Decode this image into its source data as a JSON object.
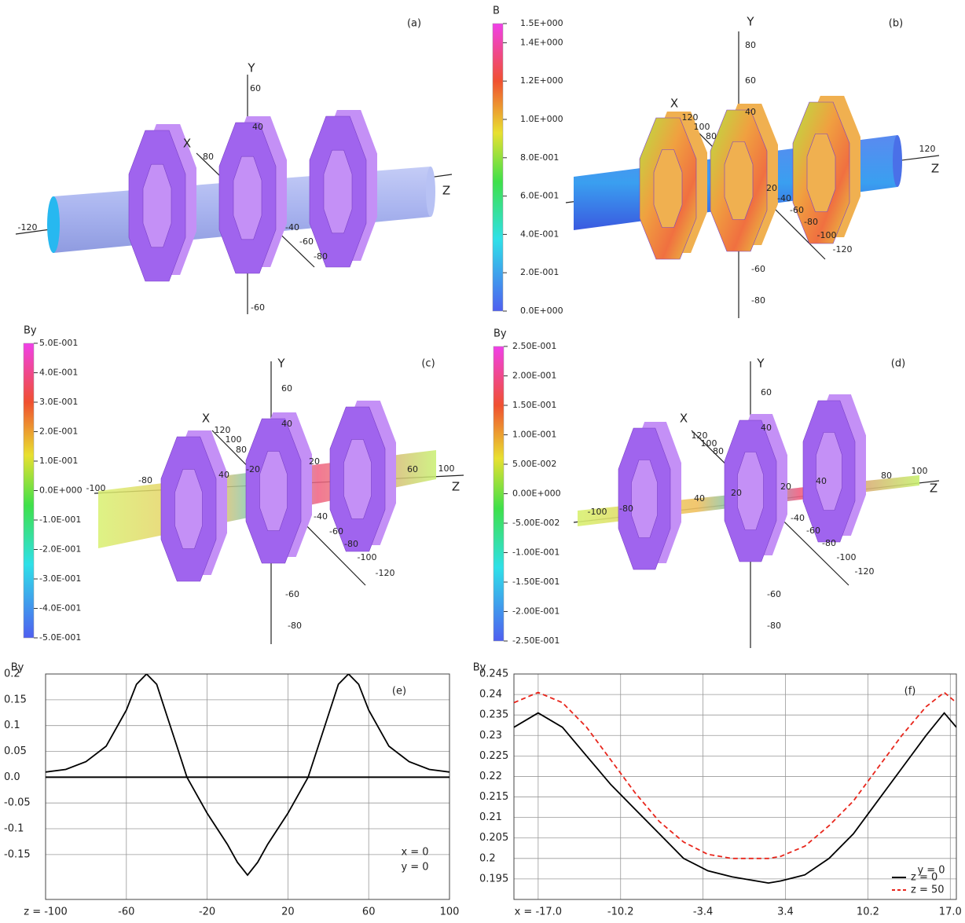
{
  "panels": [
    {
      "label": "(a)",
      "axis_titles": [
        "Y",
        "X",
        "Z"
      ],
      "tick_labels": [
        "60",
        "40",
        "80",
        "-120",
        "-40",
        "-60",
        "-80",
        "-60"
      ]
    },
    {
      "label": "(b)",
      "colorbar": {
        "title": "B",
        "lim": [
          0,
          1.5
        ],
        "ticks": [
          {
            "value": 1.5,
            "label": "1.5E+000"
          },
          {
            "value": 1.4,
            "label": "1.4E+000"
          },
          {
            "value": 1.2,
            "label": "1.2E+000"
          },
          {
            "value": 1.0,
            "label": "1.0E+000"
          },
          {
            "value": 0.8,
            "label": "8.0E-001"
          },
          {
            "value": 0.6,
            "label": "6.0E-001"
          },
          {
            "value": 0.4,
            "label": "4.0E-001"
          },
          {
            "value": 0.2,
            "label": "2.0E-001"
          },
          {
            "value": 0,
            "label": "0.0E+000"
          }
        ]
      },
      "axis_titles": [
        "Y",
        "X",
        "Z"
      ],
      "tick_labels": [
        "80",
        "60",
        "40",
        "120",
        "100",
        "80",
        "120",
        "20",
        "-40",
        "-60",
        "-80",
        "-100",
        "-120",
        "-60",
        "-80"
      ]
    },
    {
      "label": "(c)",
      "colorbar": {
        "title": "By",
        "lim": [
          -0.5,
          0.5
        ],
        "ticks": [
          {
            "value": 0.5,
            "label": "5.0E-001"
          },
          {
            "value": 0.4,
            "label": "4.0E-001"
          },
          {
            "value": 0.3,
            "label": "3.0E-001"
          },
          {
            "value": 0.2,
            "label": "2.0E-001"
          },
          {
            "value": 0.1,
            "label": "1.0E-001"
          },
          {
            "value": 0,
            "label": "0.0E+000"
          },
          {
            "value": -0.1,
            "label": "-1.0E-001"
          },
          {
            "value": -0.2,
            "label": "-2.0E-001"
          },
          {
            "value": -0.3,
            "label": "-3.0E-001"
          },
          {
            "value": -0.4,
            "label": "-4.0E-001"
          },
          {
            "value": -0.5,
            "label": "-5.0E-001"
          }
        ]
      },
      "axis_titles": [
        "Y",
        "X",
        "Z"
      ],
      "tick_labels": [
        "60",
        "40",
        "120",
        "100",
        "80",
        "100",
        "-100",
        "-80",
        "40",
        "-20",
        "20",
        "60",
        "-40",
        "-60",
        "-80",
        "-100",
        "-120",
        "-60",
        "-80"
      ]
    },
    {
      "label": "(d)",
      "colorbar": {
        "title": "By",
        "lim": [
          -0.25,
          0.25
        ],
        "ticks": [
          {
            "value": 0.25,
            "label": "2.50E-001"
          },
          {
            "value": 0.2,
            "label": "2.00E-001"
          },
          {
            "value": 0.15,
            "label": "1.50E-001"
          },
          {
            "value": 0.1,
            "label": "1.00E-001"
          },
          {
            "value": 0.05,
            "label": "5.00E-002"
          },
          {
            "value": 0,
            "label": "0.00E+000"
          },
          {
            "value": -0.05,
            "label": "-5.00E-002"
          },
          {
            "value": -0.1,
            "label": "-1.00E-001"
          },
          {
            "value": -0.15,
            "label": "-1.50E-001"
          },
          {
            "value": -0.2,
            "label": "-2.00E-001"
          },
          {
            "value": -0.25,
            "label": "-2.50E-001"
          }
        ]
      },
      "axis_titles": [
        "Y",
        "X",
        "Z"
      ],
      "tick_labels": [
        "60",
        "40",
        "120",
        "100",
        "80",
        "100",
        "80",
        "-100",
        "-80",
        "40",
        "20",
        "20",
        "40",
        "-40",
        "-60",
        "-80",
        "-100",
        "-120",
        "-60",
        "-80"
      ]
    }
  ],
  "chart_data": [
    {
      "type": "line",
      "y_label": "By",
      "annotations": [
        "(e)",
        "x = 0",
        "y = 0"
      ],
      "x": [
        -100,
        -90,
        -80,
        -70,
        -60,
        -55,
        -50,
        -45,
        -40,
        -35,
        -30,
        -20,
        -10,
        -5,
        0,
        5,
        10,
        20,
        30,
        35,
        40,
        45,
        50,
        55,
        60,
        70,
        80,
        90,
        100
      ],
      "series": [
        {
          "color": "#000000",
          "dash": false,
          "values": [
            0.01,
            0.015,
            0.03,
            0.06,
            0.13,
            0.18,
            0.2,
            0.18,
            0.12,
            0.06,
            0.0,
            -0.07,
            -0.13,
            -0.165,
            -0.19,
            -0.165,
            -0.13,
            -0.07,
            0.0,
            0.06,
            0.12,
            0.18,
            0.2,
            0.18,
            0.13,
            0.06,
            0.03,
            0.015,
            0.01
          ]
        }
      ],
      "xlim": [
        -100,
        100
      ],
      "xticks": [
        {
          "value": -100,
          "label": "z = -100"
        },
        -60,
        -20,
        20,
        60,
        100
      ],
      "ylim": [
        -0.237,
        0.2
      ],
      "yticks": [
        0.2,
        0.15,
        0.1,
        0.05,
        {
          "value": 0,
          "label": "0.0"
        },
        -0.05,
        -0.1,
        -0.15
      ],
      "grid": true,
      "zero_line": true
    },
    {
      "type": "line",
      "y_label": "By",
      "annotations": [
        "(f)",
        "y = 0"
      ],
      "legend": "lower right",
      "x": [
        -19,
        -17,
        -15,
        -13,
        -11,
        -9,
        -7,
        -5,
        -3,
        -1,
        1,
        2,
        3,
        5,
        7,
        9,
        11,
        13,
        15,
        16.5,
        17.5
      ],
      "series": [
        {
          "name": "z = 0",
          "color": "#000000",
          "dash": false,
          "values": [
            0.232,
            0.2355,
            0.232,
            0.225,
            0.218,
            0.212,
            0.206,
            0.2,
            0.197,
            0.1955,
            0.1945,
            0.194,
            0.1945,
            0.196,
            0.2,
            0.206,
            0.214,
            0.222,
            0.23,
            0.2355,
            0.232
          ]
        },
        {
          "name": "z = 50",
          "color": "#e8261c",
          "dash": true,
          "values": [
            0.238,
            0.2405,
            0.238,
            0.232,
            0.224,
            0.216,
            0.209,
            0.204,
            0.201,
            0.2,
            0.2,
            0.2,
            0.2005,
            0.203,
            0.208,
            0.214,
            0.222,
            0.23,
            0.237,
            0.2405,
            0.238
          ]
        }
      ],
      "xlim": [
        -19,
        17.5
      ],
      "xticks": [
        {
          "value": -17,
          "label": "x =  -17.0"
        },
        -10.2,
        -3.4,
        3.4,
        10.2,
        {
          "value": 17,
          "label": "17.0"
        }
      ],
      "ylim": [
        0.19,
        0.245
      ],
      "yticks": [
        0.245,
        0.24,
        0.235,
        0.23,
        0.225,
        0.22,
        0.215,
        0.21,
        0.205,
        0.2,
        0.195
      ],
      "grid": true,
      "zero_line": false
    }
  ]
}
